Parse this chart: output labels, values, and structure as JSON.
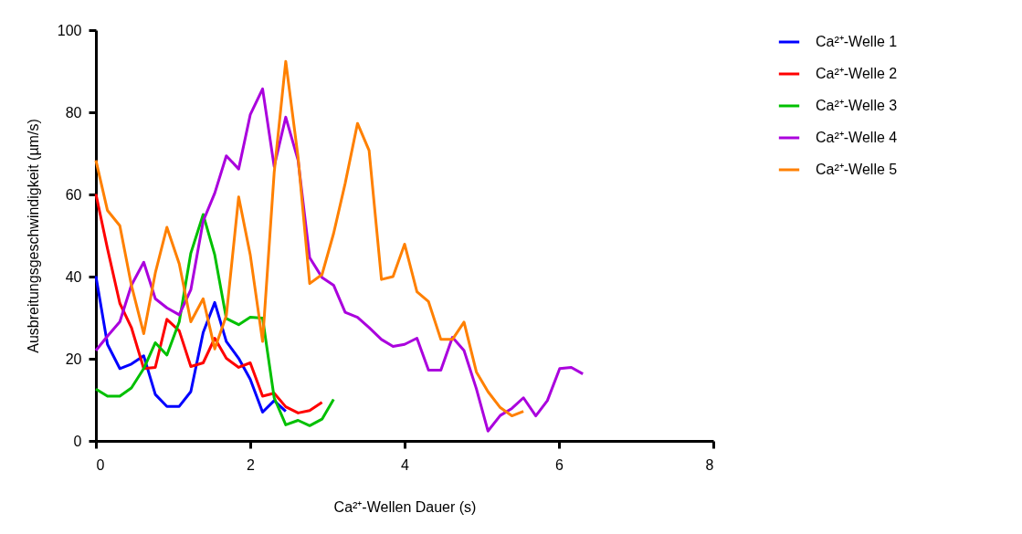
{
  "chart_data": {
    "type": "line",
    "xlabel": "Ca²⁺-Wellen Dauer (s)",
    "ylabel": "Ausbreitungsgeschwindigkeit (µm/s)",
    "xlim": [
      0,
      8
    ],
    "xticks": [
      0,
      2,
      4,
      6,
      8
    ],
    "ylim": [
      0,
      100
    ],
    "yticks": [
      0,
      20,
      40,
      60,
      80,
      100
    ],
    "grid": false,
    "legend": "right",
    "marker": "none",
    "line_style": "solid",
    "series": [
      {
        "name": "Ca²⁺-Welle 1",
        "color": "#0000ff",
        "x": [
          0,
          0.15,
          0.31,
          0.46,
          0.62,
          0.77,
          0.92,
          1.08,
          1.23,
          1.39,
          1.54,
          1.69,
          1.85,
          2.0,
          2.16,
          2.31,
          2.46
        ],
        "values": [
          40.1,
          23.5,
          17.6,
          18.7,
          20.7,
          11.3,
          8.4,
          8.4,
          12.0,
          26.4,
          33.7,
          24.2,
          20.1,
          15.0,
          7.0,
          9.8,
          7.2
        ]
      },
      {
        "name": "Ca²⁺-Welle 2",
        "color": "#ff0000",
        "x": [
          0,
          0.15,
          0.31,
          0.46,
          0.62,
          0.77,
          0.92,
          1.08,
          1.23,
          1.39,
          1.54,
          1.69,
          1.85,
          2.0,
          2.16,
          2.31,
          2.46,
          2.62,
          2.77,
          2.93
        ],
        "values": [
          60.1,
          46.8,
          33.5,
          27.6,
          17.6,
          17.9,
          29.6,
          26.8,
          18.1,
          19.0,
          25.0,
          20.1,
          17.9,
          19.0,
          10.9,
          11.6,
          8.3,
          6.8,
          7.4,
          9.4
        ]
      },
      {
        "name": "Ca²⁺-Welle 3",
        "color": "#00c000",
        "x": [
          0,
          0.15,
          0.31,
          0.46,
          0.62,
          0.77,
          0.92,
          1.08,
          1.23,
          1.39,
          1.54,
          1.69,
          1.85,
          2.0,
          2.16,
          2.31,
          2.46,
          2.62,
          2.77,
          2.93,
          3.08
        ],
        "values": [
          12.6,
          10.9,
          10.9,
          12.9,
          17.6,
          23.9,
          20.9,
          29.0,
          45.7,
          55.1,
          45.3,
          29.8,
          28.3,
          30.1,
          29.9,
          10.5,
          3.9,
          5.0,
          3.7,
          5.3,
          10.1
        ]
      },
      {
        "name": "Ca²⁺-Welle 4",
        "color": "#aa00dd",
        "x": [
          0,
          0.15,
          0.31,
          0.46,
          0.62,
          0.77,
          0.92,
          1.08,
          1.23,
          1.39,
          1.54,
          1.69,
          1.85,
          2.0,
          2.16,
          2.31,
          2.46,
          2.62,
          2.77,
          2.93,
          3.08,
          3.23,
          3.39,
          3.54,
          3.7,
          3.85,
          4.0,
          4.16,
          4.31,
          4.47,
          4.62,
          4.77,
          4.93,
          5.08,
          5.24,
          5.39,
          5.54,
          5.7,
          5.85,
          6.01,
          6.16,
          6.31
        ],
        "values": [
          22.0,
          25.5,
          29.0,
          37.9,
          43.5,
          34.6,
          32.4,
          30.7,
          36.8,
          53.5,
          60.3,
          69.4,
          66.2,
          79.4,
          85.7,
          66.8,
          78.8,
          68.3,
          44.6,
          39.8,
          37.9,
          31.3,
          30.1,
          27.6,
          24.7,
          23.0,
          23.5,
          25.0,
          17.2,
          17.2,
          25.2,
          22.0,
          12.7,
          2.4,
          6.2,
          7.9,
          10.5,
          6.1,
          9.8,
          17.6,
          17.9,
          16.3
        ]
      },
      {
        "name": "Ca²⁺-Welle 5",
        "color": "#ff8000",
        "x": [
          0,
          0.15,
          0.31,
          0.46,
          0.62,
          0.77,
          0.92,
          1.08,
          1.23,
          1.39,
          1.54,
          1.69,
          1.85,
          2.0,
          2.16,
          2.31,
          2.46,
          2.62,
          2.77,
          2.93,
          3.08,
          3.23,
          3.39,
          3.54,
          3.7,
          3.85,
          4.0,
          4.16,
          4.31,
          4.47,
          4.62,
          4.77,
          4.93,
          5.08,
          5.24,
          5.39,
          5.54
        ],
        "values": [
          68.3,
          56.1,
          52.4,
          37.9,
          26.1,
          40.9,
          52.0,
          43.1,
          29.0,
          34.6,
          22.4,
          30.5,
          59.4,
          45.3,
          24.2,
          65.3,
          92.4,
          69.0,
          38.3,
          40.5,
          50.5,
          62.7,
          77.3,
          70.7,
          39.3,
          40.0,
          47.9,
          36.3,
          33.9,
          24.7,
          24.7,
          28.9,
          16.8,
          12.0,
          8.1,
          6.1,
          7.2
        ]
      }
    ]
  }
}
